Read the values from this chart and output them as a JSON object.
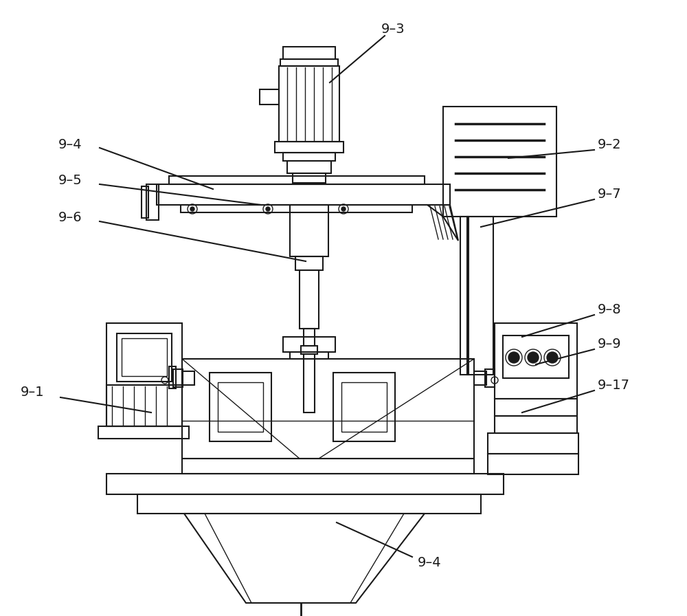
{
  "bg_color": "#ffffff",
  "line_color": "#1a1a1a",
  "lw": 1.5,
  "lw2": 1.0,
  "lw3": 2.0
}
